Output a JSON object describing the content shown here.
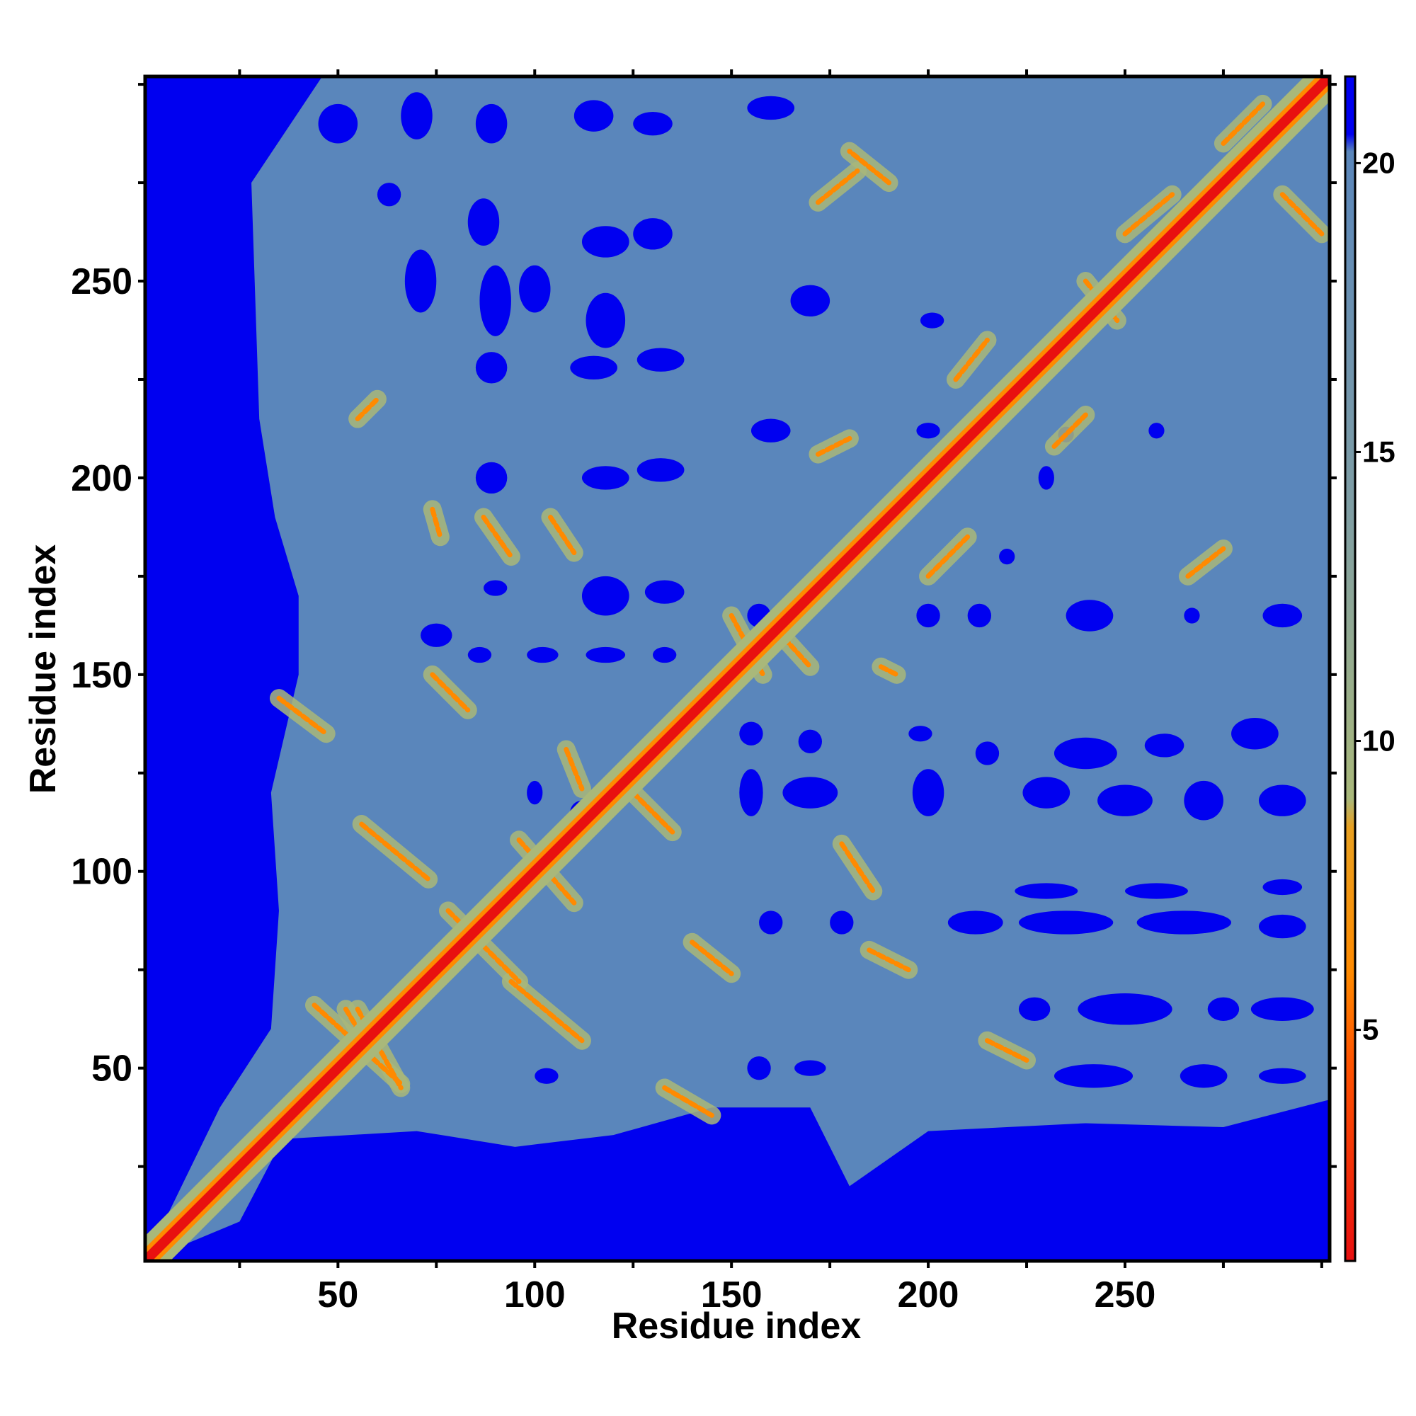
{
  "chart_data": {
    "type": "heatmap",
    "title": "",
    "xlabel": "Residue index",
    "ylabel": "Residue index",
    "xlim": [
      1,
      302
    ],
    "ylim": [
      1,
      302
    ],
    "x_ticks": [
      50,
      100,
      150,
      200,
      250
    ],
    "y_ticks": [
      50,
      100,
      150,
      200,
      250
    ],
    "colorbar": {
      "range": [
        1,
        21.5
      ],
      "ticks": [
        5,
        10,
        15,
        20
      ],
      "stops": [
        {
          "value": 1,
          "color": "#e81010"
        },
        {
          "value": 4.5,
          "color": "#ff5500"
        },
        {
          "value": 6,
          "color": "#ff8a00"
        },
        {
          "value": 8.5,
          "color": "#e8a020"
        },
        {
          "value": 9,
          "color": "#a9b87a"
        },
        {
          "value": 14,
          "color": "#7f9ea4"
        },
        {
          "value": 20.2,
          "color": "#5a86bb"
        },
        {
          "value": 20.5,
          "color": "#0000f0"
        },
        {
          "value": 21.5,
          "color": "#0000f0"
        }
      ]
    },
    "colors": {
      "diagonal": "#e81010",
      "contact": "#ff8a00",
      "near": "#a9b87a",
      "mid": "#5a86bb",
      "far": "#0000f0"
    }
  }
}
